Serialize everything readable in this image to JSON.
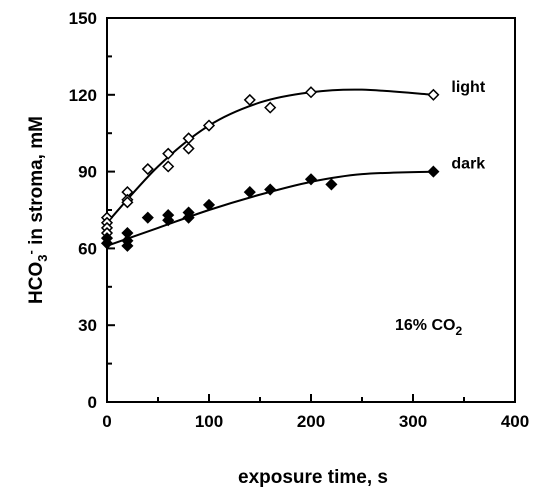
{
  "chart_data": {
    "type": "scatter",
    "xlabel": "exposure time, s",
    "ylabel": {
      "prefix": "HCO",
      "sub": "3",
      "sup": "-",
      "rest": " in stroma, mM"
    },
    "xlim": [
      0,
      400
    ],
    "ylim": [
      0,
      150
    ],
    "x_ticks": [
      "0",
      "100",
      "200",
      "300",
      "400"
    ],
    "y_ticks": [
      "0",
      "30",
      "60",
      "90",
      "120",
      "150"
    ],
    "grid": false,
    "annotation": {
      "text": "16% CO",
      "sub": "2"
    },
    "series": [
      {
        "name": "light",
        "marker": "open-diamond",
        "points": [
          [
            0,
            72
          ],
          [
            0,
            70
          ],
          [
            0,
            68
          ],
          [
            0,
            66
          ],
          [
            20,
            82
          ],
          [
            20,
            79
          ],
          [
            20,
            78
          ],
          [
            40,
            91
          ],
          [
            60,
            97
          ],
          [
            60,
            92
          ],
          [
            80,
            103
          ],
          [
            80,
            99
          ],
          [
            100,
            108
          ],
          [
            140,
            118
          ],
          [
            160,
            115
          ],
          [
            200,
            121
          ],
          [
            320,
            120
          ]
        ],
        "fit": [
          [
            0,
            70
          ],
          [
            50,
            92
          ],
          [
            100,
            108
          ],
          [
            150,
            117
          ],
          [
            200,
            121
          ],
          [
            250,
            122
          ],
          [
            320,
            120
          ]
        ]
      },
      {
        "name": "dark",
        "marker": "filled-diamond",
        "points": [
          [
            0,
            64
          ],
          [
            0,
            62
          ],
          [
            20,
            66
          ],
          [
            20,
            63
          ],
          [
            20,
            61
          ],
          [
            40,
            72
          ],
          [
            60,
            73
          ],
          [
            60,
            71
          ],
          [
            80,
            74
          ],
          [
            80,
            72
          ],
          [
            100,
            77
          ],
          [
            140,
            82
          ],
          [
            160,
            83
          ],
          [
            200,
            87
          ],
          [
            220,
            85
          ],
          [
            320,
            90
          ]
        ],
        "fit": [
          [
            0,
            61
          ],
          [
            50,
            68
          ],
          [
            100,
            75
          ],
          [
            150,
            81
          ],
          [
            200,
            86
          ],
          [
            250,
            89
          ],
          [
            320,
            90
          ]
        ]
      }
    ]
  }
}
